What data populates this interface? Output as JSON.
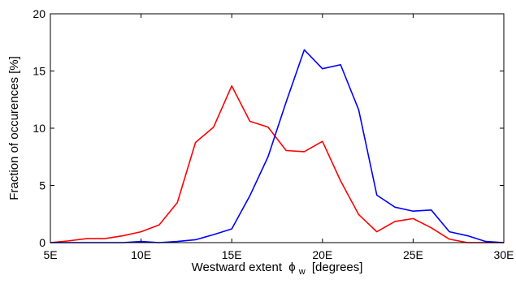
{
  "chart_data": {
    "type": "line",
    "title": "",
    "xlabel": "Westward extent",
    "xlabel_symbol": "ϕ",
    "xlabel_subscript": "w",
    "xlabel_unit": "[degrees]",
    "ylabel": "Fraction of occurences [%]",
    "xlim": [
      5,
      30
    ],
    "ylim": [
      0,
      20
    ],
    "xticks": [
      5,
      10,
      15,
      20,
      25,
      30
    ],
    "xtick_labels": [
      "5E",
      "10E",
      "15E",
      "20E",
      "25E",
      "30E"
    ],
    "yticks": [
      0,
      5,
      10,
      15,
      20
    ],
    "ytick_labels": [
      "0",
      "5",
      "10",
      "15",
      "20"
    ],
    "grid": false,
    "legend": false,
    "x": [
      5,
      6,
      7,
      8,
      9,
      10,
      11,
      12,
      13,
      14,
      15,
      16,
      17,
      18,
      19,
      20,
      21,
      22,
      23,
      24,
      25,
      26,
      27,
      28,
      29,
      30
    ],
    "series": [
      {
        "color": "#ff0000",
        "values": [
          0.0,
          0.15,
          0.35,
          0.35,
          0.6,
          0.95,
          1.55,
          3.5,
          8.75,
          10.1,
          13.7,
          10.6,
          10.1,
          8.05,
          7.95,
          8.85,
          5.4,
          2.45,
          0.95,
          1.85,
          2.1,
          1.3,
          0.3,
          0.0,
          0.0,
          0.0
        ]
      },
      {
        "color": "#0000ff",
        "values": [
          0.0,
          0.0,
          0.0,
          0.0,
          0.0,
          0.1,
          0.0,
          0.1,
          0.25,
          0.7,
          1.2,
          4.1,
          7.5,
          12.3,
          16.85,
          15.2,
          15.55,
          11.6,
          4.15,
          3.1,
          2.75,
          2.85,
          0.95,
          0.6,
          0.1,
          0.0
        ]
      }
    ]
  }
}
